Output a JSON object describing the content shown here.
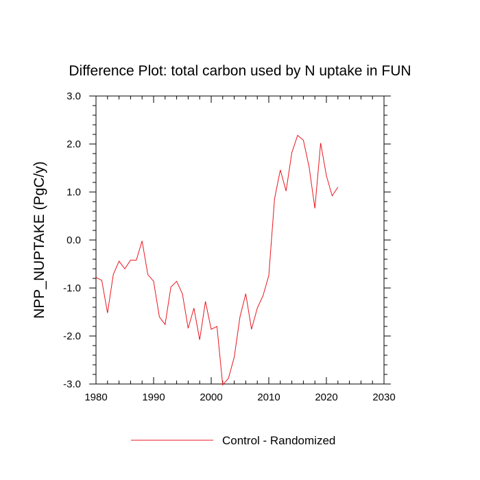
{
  "chart_data": {
    "type": "line",
    "title": "Difference Plot: total carbon used by N uptake in FUN",
    "xlabel": "",
    "ylabel": "NPP_NUPTAKE  (PgC/y)",
    "xlim": [
      1980,
      2030
    ],
    "ylim": [
      -3.0,
      3.0
    ],
    "xticks": [
      1980,
      1990,
      2000,
      2010,
      2020,
      2030
    ],
    "xtick_labels": [
      "1980",
      "1990",
      "2000",
      "2010",
      "2020",
      "2030"
    ],
    "yticks": [
      3.0,
      2.0,
      1.0,
      0.0,
      -1.0,
      -2.0,
      -3.0
    ],
    "ytick_labels": [
      "3.0",
      "2.0",
      "1.0",
      "0.0",
      "-1.0",
      "-2.0",
      "-3.0"
    ],
    "grid": false,
    "legend_position": "bottom",
    "series": [
      {
        "name": "Control - Randomized",
        "color": "#e8141c",
        "x": [
          1980,
          1981,
          1982,
          1983,
          1984,
          1985,
          1986,
          1987,
          1988,
          1989,
          1990,
          1991,
          1992,
          1993,
          1994,
          1995,
          1996,
          1997,
          1998,
          1999,
          2000,
          2001,
          2002,
          2003,
          2004,
          2005,
          2006,
          2007,
          2008,
          2009,
          2010,
          2011,
          2012,
          2013,
          2014,
          2015,
          2016,
          2017,
          2018,
          2019,
          2020,
          2021,
          2022
        ],
        "values": [
          -0.78,
          -0.84,
          -1.52,
          -0.72,
          -0.44,
          -0.6,
          -0.42,
          -0.42,
          -0.02,
          -0.72,
          -0.86,
          -1.6,
          -1.76,
          -0.98,
          -0.86,
          -1.12,
          -1.84,
          -1.42,
          -2.08,
          -1.28,
          -1.86,
          -1.8,
          -3.02,
          -2.88,
          -2.44,
          -1.6,
          -1.12,
          -1.86,
          -1.42,
          -1.16,
          -0.74,
          0.86,
          1.46,
          1.02,
          1.82,
          2.18,
          2.08,
          1.52,
          0.66,
          2.02,
          1.34,
          0.92,
          1.1
        ]
      }
    ]
  }
}
